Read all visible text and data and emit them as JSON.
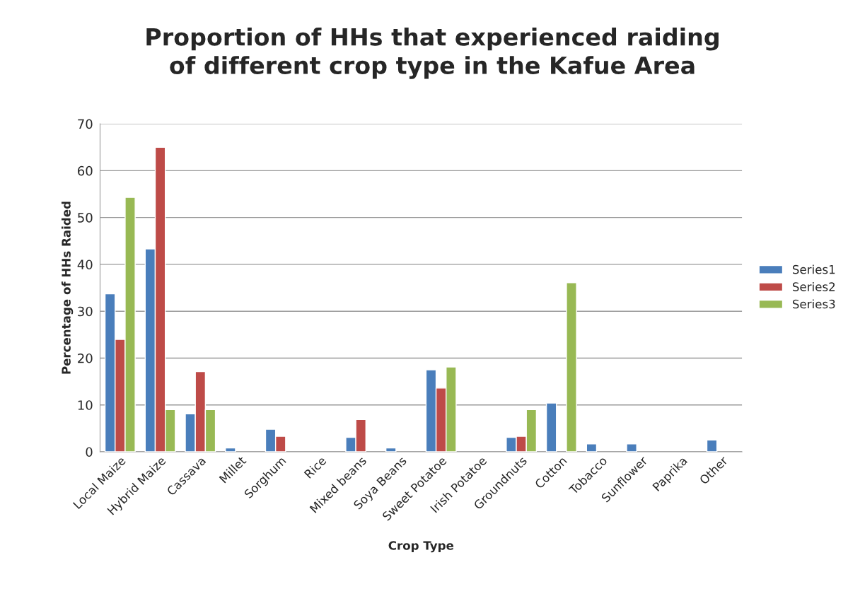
{
  "chart_data": {
    "type": "bar",
    "title": "Proportion of HHs that experienced raiding\nof different crop type in the Kafue Area",
    "xlabel": "Crop Type",
    "ylabel": "Percentage of HHs Raided",
    "categories": [
      "Local Maize",
      "Hybrid Maize",
      "Cassava",
      "Millet",
      "Sorghum",
      "Rice",
      "Mixed beans",
      "Soya Beans",
      "Sweet Potatoe",
      "Irish Potatoe",
      "Groundnuts",
      "Cotton",
      "Tobacco",
      "Sunflower",
      "Paprika",
      "Other"
    ],
    "series": [
      {
        "name": "Series1",
        "color": "#4a7ebb",
        "values": [
          33.7,
          43.3,
          8.1,
          0.8,
          4.8,
          null,
          3.1,
          0.8,
          17.5,
          null,
          3.1,
          10.4,
          1.7,
          1.7,
          null,
          2.5
        ]
      },
      {
        "name": "Series2",
        "color": "#be4b48",
        "values": [
          24.0,
          65.0,
          17.1,
          null,
          3.3,
          null,
          6.9,
          null,
          13.6,
          null,
          3.3,
          null,
          null,
          null,
          null,
          null
        ]
      },
      {
        "name": "Series3",
        "color": "#98b954",
        "values": [
          54.3,
          9.0,
          9.0,
          null,
          null,
          null,
          null,
          null,
          18.1,
          null,
          9.0,
          36.1,
          null,
          null,
          null,
          null
        ]
      }
    ],
    "ylim": [
      0,
      70
    ],
    "yticks": [
      0,
      10,
      20,
      30,
      40,
      50,
      60,
      70
    ],
    "grid": "y",
    "legend": "right"
  }
}
